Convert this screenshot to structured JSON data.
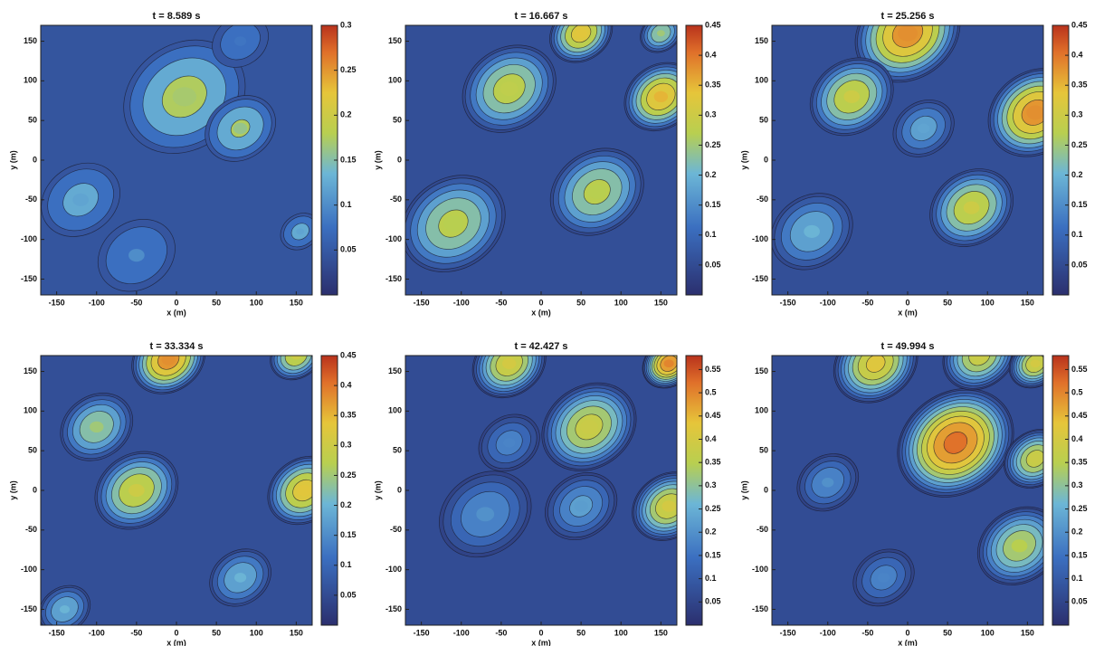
{
  "chart_data": [
    {
      "type": "contour",
      "title": "t = 8.589 s",
      "xlabel": "x (m)",
      "ylabel": "y (m)",
      "xlim": [
        -170,
        170
      ],
      "ylim": [
        -170,
        170
      ],
      "xticks": [
        -150,
        -100,
        -50,
        0,
        50,
        100,
        150
      ],
      "yticks": [
        -150,
        -100,
        -50,
        0,
        50,
        100,
        150
      ],
      "clim": [
        0,
        0.3
      ],
      "cticks": [
        0.05,
        0.1,
        0.15,
        0.2,
        0.25,
        0.3
      ],
      "peaks": [
        {
          "x": 10,
          "y": 80,
          "r": 60,
          "value": 0.17
        },
        {
          "x": 80,
          "y": 40,
          "r": 35,
          "value": 0.16
        },
        {
          "x": -120,
          "y": -50,
          "r": 40,
          "value": 0.12
        },
        {
          "x": -50,
          "y": -120,
          "r": 40,
          "value": 0.1
        },
        {
          "x": 155,
          "y": -90,
          "r": 20,
          "value": 0.12
        },
        {
          "x": 80,
          "y": 150,
          "r": 30,
          "value": 0.08
        }
      ]
    },
    {
      "type": "contour",
      "title": "t = 16.667 s",
      "xlabel": "x (m)",
      "ylabel": "y (m)",
      "xlim": [
        -170,
        170
      ],
      "ylim": [
        -170,
        170
      ],
      "xticks": [
        -150,
        -100,
        -50,
        0,
        50,
        100,
        150
      ],
      "yticks": [
        -150,
        -100,
        -50,
        0,
        50,
        100,
        150
      ],
      "clim": [
        0,
        0.45
      ],
      "cticks": [
        0.05,
        0.1,
        0.15,
        0.2,
        0.25,
        0.3,
        0.35,
        0.4,
        0.45
      ],
      "peaks": [
        {
          "x": -40,
          "y": 90,
          "r": 45,
          "value": 0.28
        },
        {
          "x": 50,
          "y": 160,
          "r": 30,
          "value": 0.33
        },
        {
          "x": 150,
          "y": 80,
          "r": 35,
          "value": 0.35
        },
        {
          "x": 70,
          "y": -40,
          "r": 45,
          "value": 0.27
        },
        {
          "x": -110,
          "y": -80,
          "r": 50,
          "value": 0.27
        },
        {
          "x": 150,
          "y": 160,
          "r": 20,
          "value": 0.25
        }
      ]
    },
    {
      "type": "contour",
      "title": "t = 25.256 s",
      "xlabel": "x (m)",
      "ylabel": "y (m)",
      "xlim": [
        -170,
        170
      ],
      "ylim": [
        -170,
        170
      ],
      "xticks": [
        -150,
        -100,
        -50,
        0,
        50,
        100,
        150
      ],
      "yticks": [
        -150,
        -100,
        -50,
        0,
        50,
        100,
        150
      ],
      "clim": [
        0,
        0.45
      ],
      "cticks": [
        0.05,
        0.1,
        0.15,
        0.2,
        0.25,
        0.3,
        0.35,
        0.4,
        0.45
      ],
      "peaks": [
        {
          "x": 0,
          "y": 160,
          "r": 50,
          "value": 0.38
        },
        {
          "x": -70,
          "y": 80,
          "r": 40,
          "value": 0.3
        },
        {
          "x": 160,
          "y": 60,
          "r": 45,
          "value": 0.38
        },
        {
          "x": 80,
          "y": -60,
          "r": 40,
          "value": 0.3
        },
        {
          "x": -120,
          "y": -90,
          "r": 40,
          "value": 0.2
        },
        {
          "x": 20,
          "y": 40,
          "r": 30,
          "value": 0.18
        }
      ]
    },
    {
      "type": "contour",
      "title": "t = 33.334 s",
      "xlabel": "x (m)",
      "ylabel": "y (m)",
      "xlim": [
        -170,
        170
      ],
      "ylim": [
        -170,
        170
      ],
      "xticks": [
        -150,
        -100,
        -50,
        0,
        50,
        100,
        150
      ],
      "yticks": [
        -150,
        -100,
        -50,
        0,
        50,
        100,
        150
      ],
      "clim": [
        0,
        0.45
      ],
      "cticks": [
        0.05,
        0.1,
        0.15,
        0.2,
        0.25,
        0.3,
        0.35,
        0.4,
        0.45
      ],
      "peaks": [
        {
          "x": -10,
          "y": 165,
          "r": 35,
          "value": 0.38
        },
        {
          "x": 150,
          "y": 170,
          "r": 25,
          "value": 0.3
        },
        {
          "x": -50,
          "y": 0,
          "r": 40,
          "value": 0.3
        },
        {
          "x": 160,
          "y": 0,
          "r": 35,
          "value": 0.33
        },
        {
          "x": -100,
          "y": 80,
          "r": 35,
          "value": 0.25
        },
        {
          "x": 80,
          "y": -110,
          "r": 30,
          "value": 0.2
        },
        {
          "x": -140,
          "y": -150,
          "r": 25,
          "value": 0.2
        }
      ]
    },
    {
      "type": "contour",
      "title": "t = 42.427 s",
      "xlabel": "x (m)",
      "ylabel": "y (m)",
      "xlim": [
        -170,
        170
      ],
      "ylim": [
        -170,
        170
      ],
      "xticks": [
        -150,
        -100,
        -50,
        0,
        50,
        100,
        150
      ],
      "yticks": [
        -150,
        -100,
        -50,
        0,
        50,
        100,
        150
      ],
      "clim": [
        0,
        0.58
      ],
      "cticks": [
        0.05,
        0.1,
        0.15,
        0.2,
        0.25,
        0.3,
        0.35,
        0.4,
        0.45,
        0.5,
        0.55
      ],
      "peaks": [
        {
          "x": -40,
          "y": 160,
          "r": 35,
          "value": 0.4
        },
        {
          "x": 60,
          "y": 80,
          "r": 45,
          "value": 0.38
        },
        {
          "x": 160,
          "y": 160,
          "r": 25,
          "value": 0.5
        },
        {
          "x": 160,
          "y": -20,
          "r": 35,
          "value": 0.4
        },
        {
          "x": -70,
          "y": -30,
          "r": 45,
          "value": 0.2
        },
        {
          "x": 50,
          "y": -20,
          "r": 35,
          "value": 0.22
        },
        {
          "x": -40,
          "y": 60,
          "r": 30,
          "value": 0.18
        }
      ]
    },
    {
      "type": "contour",
      "title": "t = 49.994 s",
      "xlabel": "x (m)",
      "ylabel": "y (m)",
      "xlim": [
        -170,
        170
      ],
      "ylim": [
        -170,
        170
      ],
      "xticks": [
        -150,
        -100,
        -50,
        0,
        50,
        100,
        150
      ],
      "yticks": [
        -150,
        -100,
        -50,
        0,
        50,
        100,
        150
      ],
      "clim": [
        0,
        0.58
      ],
      "cticks": [
        0.05,
        0.1,
        0.15,
        0.2,
        0.25,
        0.3,
        0.35,
        0.4,
        0.45,
        0.5,
        0.55
      ],
      "peaks": [
        {
          "x": 60,
          "y": 60,
          "r": 55,
          "value": 0.52
        },
        {
          "x": -40,
          "y": 160,
          "r": 40,
          "value": 0.42
        },
        {
          "x": 90,
          "y": 170,
          "r": 35,
          "value": 0.38
        },
        {
          "x": 160,
          "y": 160,
          "r": 25,
          "value": 0.4
        },
        {
          "x": 160,
          "y": 40,
          "r": 30,
          "value": 0.38
        },
        {
          "x": 140,
          "y": -70,
          "r": 40,
          "value": 0.35
        },
        {
          "x": -100,
          "y": 10,
          "r": 30,
          "value": 0.2
        },
        {
          "x": -30,
          "y": -110,
          "r": 30,
          "value": 0.18
        }
      ]
    }
  ]
}
